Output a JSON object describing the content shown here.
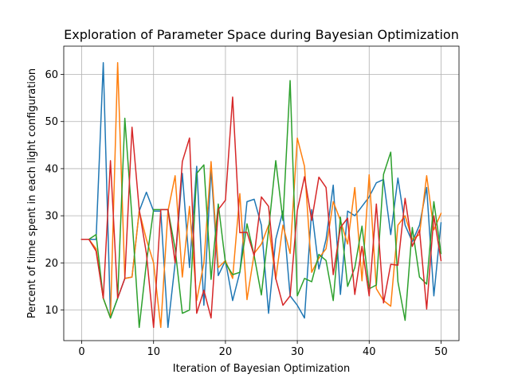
{
  "chart_data": {
    "type": "line",
    "title": "Exploration of Parameter Space during Bayesian Optimization",
    "xlabel": "Iteration of Bayesian Optimization",
    "ylabel": "Percent of time spent in each light configuration",
    "xlim": [
      -2.5,
      52.5
    ],
    "ylim": [
      3.5,
      66.0
    ],
    "xticks": [
      0,
      10,
      20,
      30,
      40,
      50
    ],
    "yticks": [
      10,
      20,
      30,
      40,
      50,
      60
    ],
    "grid": true,
    "x": [
      0,
      1,
      2,
      3,
      4,
      5,
      6,
      7,
      8,
      9,
      10,
      11,
      12,
      13,
      14,
      15,
      16,
      17,
      18,
      19,
      20,
      21,
      22,
      23,
      24,
      25,
      26,
      27,
      28,
      29,
      30,
      31,
      32,
      33,
      34,
      35,
      36,
      37,
      38,
      39,
      40,
      41,
      42,
      43,
      44,
      45,
      46,
      47,
      48,
      49,
      50
    ],
    "series": [
      {
        "color": "#1f77b4",
        "values": [
          25,
          25,
          25,
          62.5,
          8.3,
          12.5,
          16.7,
          17,
          31,
          35,
          31,
          31,
          6.3,
          20,
          39,
          19,
          40.5,
          11,
          40,
          17.3,
          20.5,
          12,
          18,
          33,
          33.5,
          28,
          9.3,
          25,
          31,
          13,
          11,
          8.3,
          31.3,
          18.7,
          25,
          36.5,
          13.3,
          31,
          30,
          32,
          34,
          37,
          37.7,
          26,
          38,
          28,
          24.5,
          28,
          36,
          13,
          28.5
        ]
      },
      {
        "color": "#ff7f0e",
        "values": [
          25,
          25,
          23,
          12.5,
          8.3,
          62.5,
          16.7,
          17,
          31,
          25,
          20,
          6.3,
          31,
          38.5,
          17,
          32,
          12,
          20,
          41.5,
          19,
          20.5,
          16.7,
          34.7,
          12.2,
          22,
          24,
          28,
          16.5,
          28,
          22,
          46.5,
          40.5,
          18,
          21,
          23,
          33,
          29,
          24,
          36,
          16.2,
          38.7,
          14.5,
          12,
          10.8,
          28,
          30,
          25,
          26,
          38.5,
          27,
          30.5
        ]
      },
      {
        "color": "#2ca02c",
        "values": [
          25,
          25,
          26,
          12.5,
          8.3,
          12.5,
          50.7,
          29.5,
          6.3,
          20,
          31.3,
          31.3,
          31.3,
          23,
          9.3,
          10,
          39,
          40.8,
          16.5,
          32.5,
          20,
          17.5,
          18,
          28.3,
          21.5,
          13.2,
          27,
          41.7,
          29,
          58.7,
          13,
          16.7,
          16,
          21.8,
          20.5,
          12,
          29.7,
          15,
          19,
          27.8,
          14.5,
          15.3,
          38.8,
          43.5,
          16,
          7.8,
          27.5,
          17,
          15.5,
          33,
          22
        ]
      },
      {
        "color": "#d62728",
        "values": [
          25,
          25,
          22.5,
          12.5,
          41.7,
          12.5,
          16.7,
          48.8,
          31.3,
          22,
          6.3,
          31.3,
          31.3,
          20,
          41.5,
          46.5,
          9.3,
          14.2,
          8.3,
          31.3,
          33.3,
          55.2,
          26.4,
          26.5,
          21.5,
          34,
          32,
          16.7,
          11,
          13,
          31.1,
          38.3,
          29,
          38.2,
          36,
          17.5,
          27.5,
          29.5,
          13.3,
          23.5,
          13,
          32.5,
          11.5,
          19.7,
          19.5,
          33.7,
          23.5,
          27,
          10.2,
          30,
          20.5
        ]
      }
    ]
  }
}
